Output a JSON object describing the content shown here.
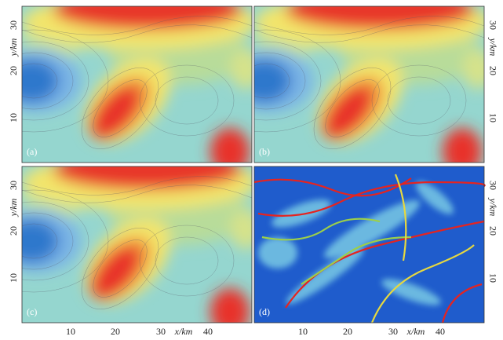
{
  "panels": [
    {
      "label": "(a)"
    },
    {
      "label": "(b)"
    },
    {
      "label": "(c)"
    },
    {
      "label": "(d)"
    }
  ],
  "y_axes": [
    {
      "ticks": [
        "30",
        "20",
        "10"
      ],
      "label": "y/km"
    },
    {
      "ticks": [
        "30",
        "20",
        "10"
      ],
      "label": "y/km"
    },
    {
      "ticks": [
        "30",
        "20",
        "10"
      ],
      "label": "y/km"
    },
    {
      "ticks": [
        "30",
        "20",
        "10"
      ],
      "label": "y/km"
    }
  ],
  "x_axes": [
    {
      "ticks": [
        "10",
        "20",
        "30",
        "40"
      ],
      "label": "x/km"
    },
    {
      "ticks": [
        "10",
        "20",
        "30",
        "40"
      ],
      "label": "x/km"
    }
  ]
}
